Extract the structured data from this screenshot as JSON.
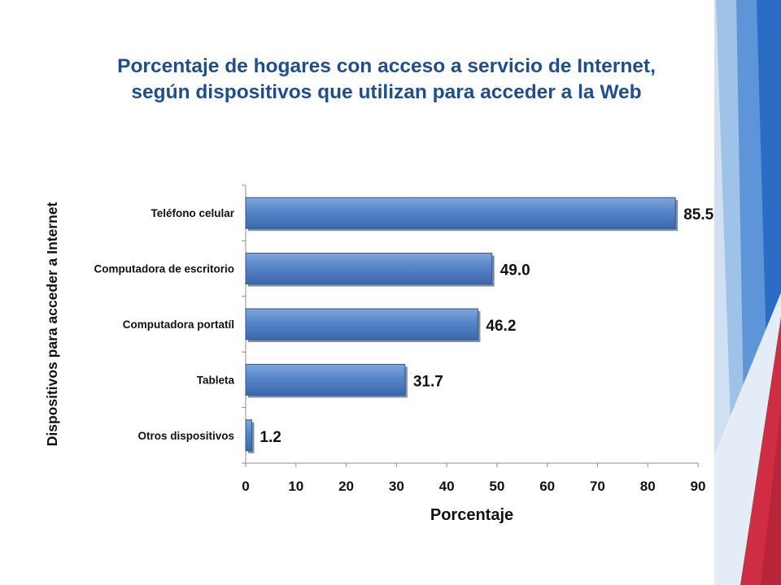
{
  "title": {
    "line1": "Porcentaje de hogares con acceso a servicio de Internet,",
    "line2": "según dispositivos que utilizan para acceder a la Web"
  },
  "chart_data": {
    "type": "bar",
    "orientation": "horizontal",
    "categories": [
      "Teléfono celular",
      "Computadora de escritorio",
      "Computadora portatíl",
      "Tableta",
      "Otros dispositivos"
    ],
    "values": [
      85.5,
      49.0,
      46.2,
      31.7,
      1.2
    ],
    "value_labels": [
      "85.5",
      "49.0",
      "46.2",
      "31.7",
      "1.2"
    ],
    "xlabel": "Porcentaje",
    "ylabel": "Dispositivos para acceder a Internet",
    "xlim": [
      0,
      90
    ],
    "xticks": [
      0,
      10,
      20,
      30,
      40,
      50,
      60,
      70,
      80,
      90
    ],
    "grid": false,
    "legend": "none",
    "bar_color": "#4f7fc4"
  },
  "colors": {
    "title": "#1f4e8c",
    "accent_blue": "#2b6cc4",
    "accent_red": "#cf2e42"
  }
}
